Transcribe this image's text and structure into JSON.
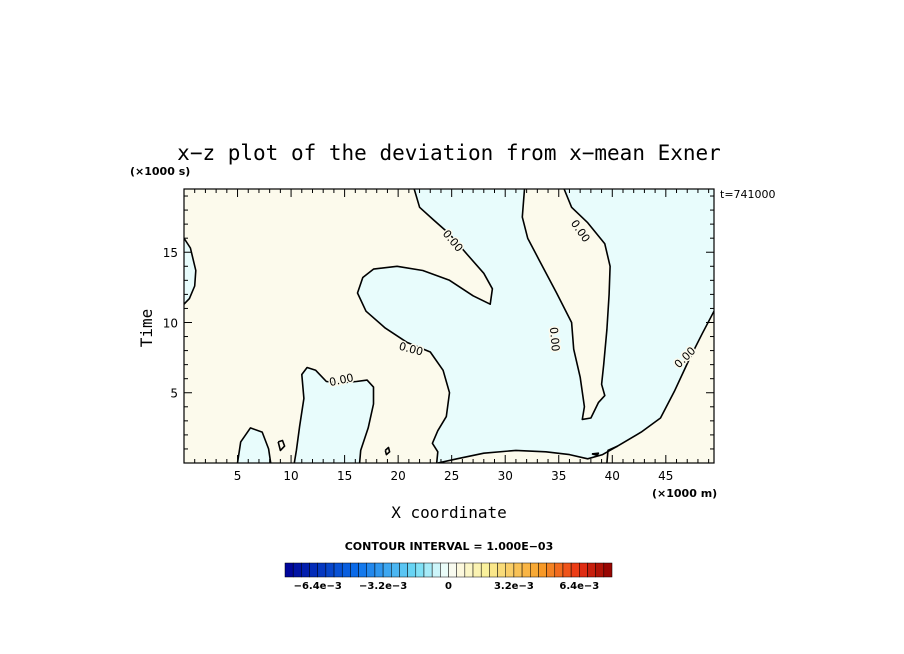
{
  "chart_data": {
    "type": "contour",
    "title": "x−z plot of the deviation from x−mean Exner",
    "xlabel": "X coordinate",
    "ylabel": "Time",
    "x_unit": "(×1000 m)",
    "y_unit": "(×1000 s)",
    "time_stamp": "t=741000",
    "xlim": [
      0,
      49.5
    ],
    "ylim": [
      0,
      19.5
    ],
    "x_ticks": [
      5,
      10,
      15,
      20,
      25,
      30,
      35,
      40,
      45
    ],
    "y_ticks": [
      5,
      10,
      15
    ],
    "contour_level_label": "0.00",
    "contour_interval_text": "CONTOUR INTERVAL = 1.000E−03",
    "colorbar": {
      "tick_labels": [
        "−6.4e−3",
        "−3.2e−3",
        "0",
        "3.2e−3",
        "6.4e−3"
      ],
      "tick_values": [
        -0.0064,
        -0.0032,
        0,
        0.0032,
        0.0064
      ],
      "range": [
        -0.008,
        0.008
      ]
    },
    "colors": {
      "positive_fill": "#fcfaec",
      "negative_fill": "#e8fcfc",
      "contour_line": "#000000"
    },
    "zero_contours": [
      {
        "name": "north-boundary-a",
        "points": [
          [
            21.5,
            19.5
          ],
          [
            22.0,
            18.2
          ],
          [
            23.3,
            17.3
          ],
          [
            24.8,
            16.3
          ],
          [
            26.5,
            14.8
          ],
          [
            28.0,
            13.5
          ],
          [
            28.8,
            12.4
          ],
          [
            28.6,
            11.3
          ],
          [
            27.0,
            11.9
          ],
          [
            24.8,
            13.0
          ],
          [
            22.3,
            13.7
          ],
          [
            19.9,
            14.0
          ],
          [
            17.7,
            13.8
          ],
          [
            16.7,
            13.2
          ],
          [
            16.2,
            12.1
          ],
          [
            17.0,
            10.8
          ],
          [
            18.8,
            9.6
          ],
          [
            20.8,
            8.6
          ],
          [
            23.0,
            7.9
          ],
          [
            24.2,
            6.6
          ],
          [
            24.8,
            5.0
          ],
          [
            24.5,
            3.3
          ],
          [
            23.7,
            2.3
          ],
          [
            23.2,
            1.4
          ],
          [
            23.7,
            0.8
          ],
          [
            23.6,
            0.0
          ]
        ]
      },
      {
        "name": "north-boundary-b",
        "points": [
          [
            31.8,
            19.5
          ],
          [
            31.6,
            17.5
          ],
          [
            32.1,
            16.0
          ],
          [
            33.2,
            14.4
          ],
          [
            34.8,
            12.1
          ],
          [
            36.2,
            10.0
          ],
          [
            36.4,
            8.1
          ],
          [
            37.0,
            6.1
          ],
          [
            37.4,
            4.0
          ],
          [
            37.2,
            3.1
          ],
          [
            38.0,
            3.2
          ],
          [
            38.7,
            4.3
          ],
          [
            39.3,
            4.8
          ],
          [
            39.0,
            5.6
          ],
          [
            39.2,
            7.0
          ],
          [
            39.5,
            9.5
          ],
          [
            39.7,
            12.0
          ],
          [
            39.8,
            14.0
          ],
          [
            39.3,
            15.6
          ],
          [
            37.7,
            17.1
          ],
          [
            36.2,
            18.2
          ],
          [
            35.5,
            19.5
          ]
        ]
      },
      {
        "name": "south-boundary-a",
        "points": [
          [
            10.3,
            0.0
          ],
          [
            10.5,
            0.9
          ],
          [
            10.8,
            2.6
          ],
          [
            11.2,
            4.6
          ],
          [
            11.0,
            6.3
          ],
          [
            11.5,
            6.8
          ],
          [
            12.3,
            6.6
          ],
          [
            13.3,
            5.8
          ],
          [
            14.6,
            5.7
          ],
          [
            16.1,
            5.8
          ],
          [
            17.1,
            5.9
          ],
          [
            17.7,
            5.4
          ],
          [
            17.7,
            4.2
          ],
          [
            17.2,
            2.5
          ],
          [
            16.5,
            0.9
          ],
          [
            16.4,
            0.0
          ]
        ]
      },
      {
        "name": "south-boundary-b",
        "points": [
          [
            23.7,
            0.0
          ],
          [
            25.5,
            0.3
          ],
          [
            28.0,
            0.7
          ],
          [
            31.0,
            0.9
          ],
          [
            33.8,
            0.8
          ],
          [
            36.0,
            0.6
          ],
          [
            37.7,
            0.3
          ],
          [
            39.1,
            0.6
          ],
          [
            40.5,
            1.2
          ],
          [
            42.7,
            2.2
          ],
          [
            44.5,
            3.2
          ],
          [
            45.8,
            5.1
          ],
          [
            47.2,
            7.4
          ],
          [
            48.4,
            9.2
          ],
          [
            49.5,
            10.8
          ]
        ]
      },
      {
        "name": "south-boundary-c",
        "points": [
          [
            5.0,
            0.0
          ],
          [
            5.3,
            1.5
          ],
          [
            6.2,
            2.5
          ],
          [
            7.3,
            2.2
          ],
          [
            7.9,
            1.0
          ],
          [
            8.1,
            0.0
          ]
        ]
      },
      {
        "name": "south-boundary-d",
        "points": [
          [
            39.5,
            0.0
          ],
          [
            39.6,
            0.9
          ],
          [
            40.5,
            1.2
          ]
        ]
      },
      {
        "name": "west-boundary",
        "points": [
          [
            0.0,
            16.0
          ],
          [
            0.6,
            15.3
          ],
          [
            1.1,
            13.7
          ],
          [
            1.0,
            12.6
          ],
          [
            0.5,
            11.7
          ],
          [
            0.0,
            11.3
          ]
        ]
      },
      {
        "name": "island-a",
        "points": [
          [
            8.8,
            1.5
          ],
          [
            9.2,
            1.6
          ],
          [
            9.4,
            1.2
          ],
          [
            9.0,
            0.9
          ],
          [
            8.8,
            1.5
          ]
        ]
      },
      {
        "name": "island-b",
        "points": [
          [
            18.8,
            0.9
          ],
          [
            19.1,
            1.1
          ],
          [
            19.2,
            0.8
          ],
          [
            18.9,
            0.6
          ],
          [
            18.8,
            0.9
          ]
        ]
      },
      {
        "name": "island-c",
        "points": [
          [
            38.1,
            0.65
          ],
          [
            38.7,
            0.7
          ],
          [
            38.6,
            0.55
          ],
          [
            38.1,
            0.65
          ]
        ]
      }
    ],
    "contour_labels": [
      {
        "x": 25.1,
        "y": 15.8,
        "angle": 50
      },
      {
        "x": 37.0,
        "y": 16.5,
        "angle": 55
      },
      {
        "x": 34.6,
        "y": 8.8,
        "angle": 85
      },
      {
        "x": 21.2,
        "y": 8.1,
        "angle": 15
      },
      {
        "x": 14.7,
        "y": 5.9,
        "angle": -12
      },
      {
        "x": 46.8,
        "y": 7.5,
        "angle": -45
      }
    ]
  }
}
